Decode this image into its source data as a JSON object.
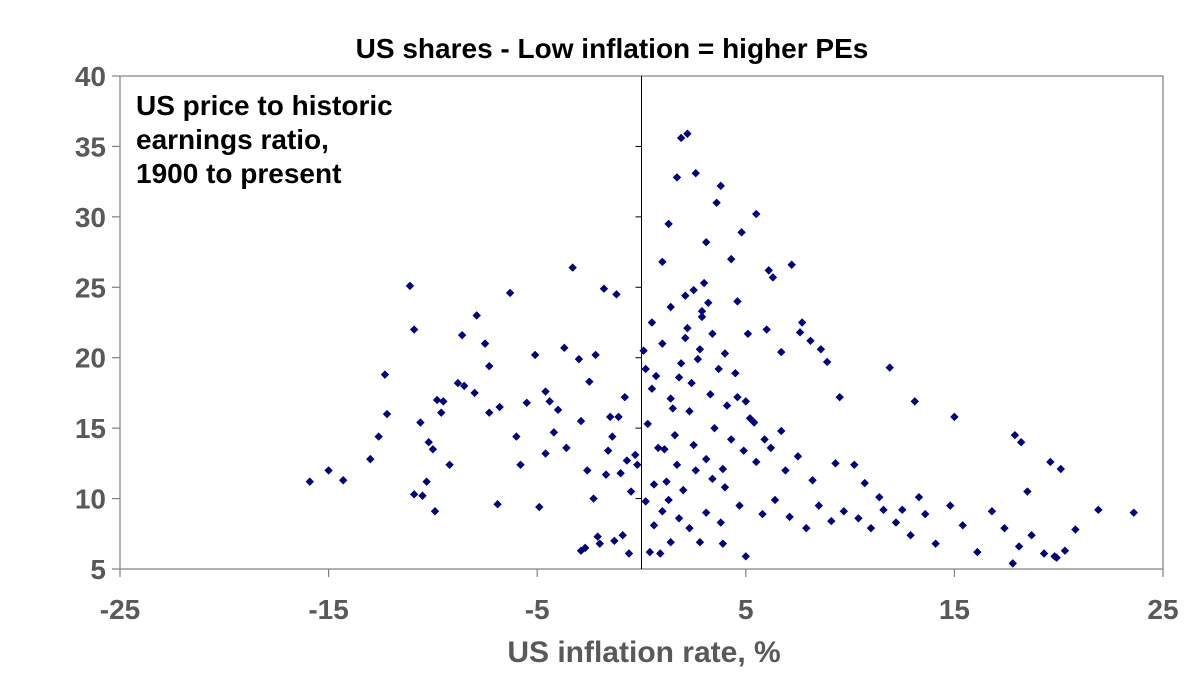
{
  "chart_data": {
    "type": "scatter",
    "title": "US shares - Low inflation = higher PEs",
    "xlabel": "US inflation rate, %",
    "ylabel": "",
    "annotation": [
      "US price to historic",
      "earnings ratio,",
      "1900 to present"
    ],
    "xlim": [
      -25,
      25
    ],
    "ylim": [
      5,
      40
    ],
    "xticks": [
      -25,
      -15,
      -5,
      5,
      15,
      25
    ],
    "yticks": [
      5,
      10,
      15,
      20,
      25,
      30,
      35,
      40
    ],
    "grid": false,
    "marker": "diamond",
    "marker_color": "#000080",
    "series": [
      {
        "points": [
          [
            -15.9,
            11.2
          ],
          [
            -15.0,
            12.0
          ],
          [
            -14.3,
            11.3
          ],
          [
            -13.0,
            12.8
          ],
          [
            -12.6,
            14.4
          ],
          [
            -12.2,
            16.0
          ],
          [
            -12.3,
            18.8
          ],
          [
            -11.1,
            25.1
          ],
          [
            -10.9,
            22.0
          ],
          [
            -10.9,
            10.3
          ],
          [
            -10.5,
            10.2
          ],
          [
            -10.6,
            15.4
          ],
          [
            -10.3,
            11.2
          ],
          [
            -10.2,
            14.0
          ],
          [
            -10.0,
            13.5
          ],
          [
            -9.9,
            9.1
          ],
          [
            -9.8,
            17.0
          ],
          [
            -9.6,
            16.1
          ],
          [
            -9.5,
            16.9
          ],
          [
            -9.2,
            12.4
          ],
          [
            -8.8,
            18.2
          ],
          [
            -8.5,
            18.0
          ],
          [
            -8.6,
            21.6
          ],
          [
            -8.0,
            17.5
          ],
          [
            -7.9,
            23.0
          ],
          [
            -7.5,
            21.0
          ],
          [
            -7.3,
            19.4
          ],
          [
            -6.8,
            16.5
          ],
          [
            -6.9,
            9.6
          ],
          [
            -6.3,
            24.6
          ],
          [
            -6.0,
            14.4
          ],
          [
            -5.5,
            16.8
          ],
          [
            -5.1,
            20.2
          ],
          [
            -4.9,
            9.4
          ],
          [
            -4.6,
            17.6
          ],
          [
            -4.4,
            16.9
          ],
          [
            -4.2,
            14.7
          ],
          [
            -4.0,
            16.3
          ],
          [
            -3.7,
            20.7
          ],
          [
            -3.3,
            26.4
          ],
          [
            -3.0,
            19.9
          ],
          [
            -2.9,
            15.5
          ],
          [
            -2.6,
            12.0
          ],
          [
            -2.2,
            20.2
          ],
          [
            -2.0,
            6.8
          ],
          [
            -1.8,
            24.9
          ],
          [
            -1.7,
            11.7
          ],
          [
            -1.5,
            15.8
          ],
          [
            -1.2,
            24.5
          ],
          [
            -0.6,
            6.1
          ],
          [
            0.4,
            6.2
          ],
          [
            1.4,
            6.9
          ],
          [
            -2.9,
            6.3
          ],
          [
            -2.7,
            6.5
          ],
          [
            -2.1,
            7.3
          ],
          [
            -1.3,
            7.0
          ],
          [
            -0.9,
            7.4
          ],
          [
            0.9,
            6.1
          ],
          [
            2.8,
            6.9
          ],
          [
            5.0,
            5.9
          ],
          [
            -0.2,
            12.4
          ],
          [
            0.1,
            20.5
          ],
          [
            0.3,
            15.3
          ],
          [
            0.5,
            17.8
          ],
          [
            0.8,
            13.6
          ],
          [
            1.0,
            21.0
          ],
          [
            1.2,
            11.2
          ],
          [
            1.4,
            17.1
          ],
          [
            1.6,
            14.5
          ],
          [
            1.8,
            18.6
          ],
          [
            2.1,
            21.4
          ],
          [
            2.3,
            16.2
          ],
          [
            2.5,
            13.8
          ],
          [
            2.7,
            19.9
          ],
          [
            2.9,
            23.3
          ],
          [
            3.1,
            12.8
          ],
          [
            3.3,
            17.4
          ],
          [
            3.5,
            15.0
          ],
          [
            3.7,
            19.2
          ],
          [
            3.9,
            12.1
          ],
          [
            4.1,
            16.6
          ],
          [
            4.3,
            14.2
          ],
          [
            4.6,
            17.2
          ],
          [
            4.9,
            13.4
          ],
          [
            5.2,
            15.7
          ],
          [
            5.5,
            12.6
          ],
          [
            0.6,
            11.0
          ],
          [
            1.3,
            9.9
          ],
          [
            2.0,
            10.6
          ],
          [
            2.6,
            12.0
          ],
          [
            3.4,
            11.4
          ],
          [
            4.0,
            10.8
          ],
          [
            1.7,
            12.4
          ],
          [
            2.2,
            22.1
          ],
          [
            2.5,
            24.8
          ],
          [
            3.0,
            25.3
          ],
          [
            3.2,
            23.9
          ],
          [
            2.8,
            20.6
          ],
          [
            2.4,
            18.2
          ],
          [
            1.9,
            19.6
          ],
          [
            1.5,
            16.4
          ],
          [
            1.1,
            13.5
          ],
          [
            0.7,
            18.7
          ],
          [
            0.2,
            19.2
          ],
          [
            -0.3,
            13.1
          ],
          [
            -0.7,
            12.7
          ],
          [
            -1.1,
            15.8
          ],
          [
            -1.4,
            14.4
          ],
          [
            0.6,
            8.1
          ],
          [
            1.0,
            9.1
          ],
          [
            1.8,
            8.6
          ],
          [
            2.3,
            7.9
          ],
          [
            3.1,
            9.0
          ],
          [
            3.8,
            8.3
          ],
          [
            4.7,
            9.5
          ],
          [
            5.8,
            8.9
          ],
          [
            6.4,
            9.9
          ],
          [
            7.1,
            8.7
          ],
          [
            7.9,
            7.9
          ],
          [
            8.5,
            9.5
          ],
          [
            9.1,
            8.4
          ],
          [
            9.7,
            9.1
          ],
          [
            10.4,
            8.6
          ],
          [
            11.0,
            7.9
          ],
          [
            11.6,
            9.2
          ],
          [
            12.2,
            8.3
          ],
          [
            12.9,
            7.4
          ],
          [
            13.6,
            8.9
          ],
          [
            14.1,
            6.8
          ],
          [
            14.8,
            9.5
          ],
          [
            15.4,
            8.1
          ],
          [
            16.1,
            6.2
          ],
          [
            16.8,
            9.1
          ],
          [
            17.4,
            7.9
          ],
          [
            18.1,
            6.6
          ],
          [
            18.7,
            7.4
          ],
          [
            19.3,
            6.1
          ],
          [
            19.8,
            5.9
          ],
          [
            20.3,
            6.3
          ],
          [
            20.8,
            7.8
          ],
          [
            21.9,
            9.2
          ],
          [
            23.6,
            9.0
          ],
          [
            17.9,
            14.5
          ],
          [
            18.2,
            14.0
          ],
          [
            18.5,
            10.5
          ],
          [
            19.6,
            12.6
          ],
          [
            20.1,
            12.1
          ],
          [
            17.8,
            5.4
          ],
          [
            19.9,
            5.8
          ],
          [
            15.0,
            15.8
          ],
          [
            13.1,
            16.9
          ],
          [
            11.9,
            19.3
          ],
          [
            9.5,
            17.2
          ],
          [
            8.9,
            19.7
          ],
          [
            8.6,
            20.6
          ],
          [
            8.1,
            21.2
          ],
          [
            7.7,
            22.5
          ],
          [
            7.2,
            26.6
          ],
          [
            6.3,
            25.7
          ],
          [
            6.0,
            22.0
          ],
          [
            5.5,
            30.2
          ],
          [
            4.8,
            28.9
          ],
          [
            4.3,
            27.0
          ],
          [
            3.8,
            32.2
          ],
          [
            3.1,
            28.2
          ],
          [
            2.6,
            33.1
          ],
          [
            2.2,
            35.9
          ],
          [
            1.9,
            35.6
          ],
          [
            1.7,
            32.8
          ],
          [
            1.3,
            29.5
          ],
          [
            1.0,
            26.8
          ],
          [
            3.6,
            31.0
          ],
          [
            4.6,
            24.0
          ],
          [
            5.1,
            21.7
          ],
          [
            6.1,
            26.2
          ],
          [
            6.7,
            20.4
          ],
          [
            7.6,
            21.8
          ],
          [
            9.3,
            12.5
          ],
          [
            10.2,
            12.4
          ],
          [
            10.7,
            11.1
          ],
          [
            11.4,
            10.1
          ],
          [
            12.5,
            9.2
          ],
          [
            13.3,
            10.1
          ],
          [
            6.9,
            12.0
          ],
          [
            7.5,
            13.0
          ],
          [
            8.2,
            11.3
          ],
          [
            3.9,
            6.8
          ],
          [
            0.2,
            9.8
          ],
          [
            -0.5,
            10.5
          ],
          [
            -1.0,
            11.8
          ],
          [
            -1.6,
            13.4
          ],
          [
            -2.3,
            10.0
          ],
          [
            -3.6,
            13.6
          ],
          [
            -4.6,
            13.2
          ],
          [
            -5.8,
            12.4
          ],
          [
            -7.3,
            16.1
          ],
          [
            -2.5,
            18.3
          ],
          [
            -0.8,
            17.2
          ],
          [
            0.5,
            22.5
          ],
          [
            1.4,
            23.6
          ],
          [
            2.1,
            24.4
          ],
          [
            2.9,
            22.9
          ],
          [
            3.4,
            21.7
          ],
          [
            4.0,
            20.3
          ],
          [
            4.5,
            18.9
          ],
          [
            5.0,
            16.9
          ],
          [
            5.4,
            15.4
          ],
          [
            5.9,
            14.2
          ],
          [
            6.2,
            13.6
          ],
          [
            6.7,
            14.8
          ]
        ]
      }
    ]
  }
}
